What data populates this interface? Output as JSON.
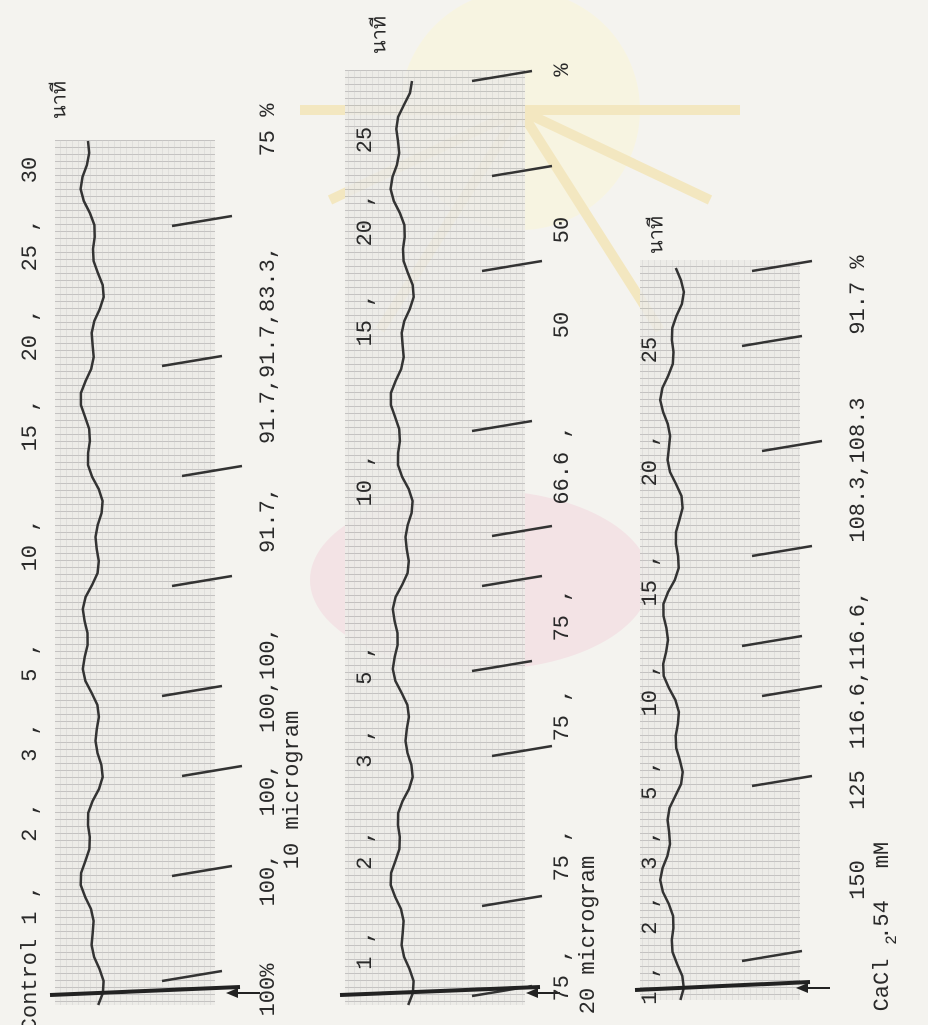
{
  "strips": [
    {
      "times": [
        "Control",
        "1 ,",
        "2 ,",
        "3 ,",
        "5 ,",
        "10 ,",
        "15 ,",
        "20 ,",
        "25 ,",
        "30"
      ],
      "unit": "นาที",
      "responses": [
        "100%",
        "100,",
        "100,",
        "100,100,",
        "91.7,",
        "91.7,91.7,83.3,",
        "75 %"
      ],
      "dose": "10 microgram"
    },
    {
      "times": [
        "1 ,",
        "2 ,",
        "3 ,",
        "5 ,",
        "10 ,",
        "15 ,",
        "20 ,",
        "25"
      ],
      "unit": "นาที",
      "responses": [
        "75 ,",
        "75 ,",
        "75 ,",
        "75 ,",
        "66.6 ,",
        "50",
        "50",
        "%"
      ],
      "dose": "20 microgram"
    },
    {
      "times": [
        "1 ,",
        "2 ,",
        "3 ,",
        "5 ,",
        "10 ,",
        "15 ,",
        "20 ,",
        "25"
      ],
      "unit": "นาที",
      "responses": [
        "150",
        "125",
        "116.6,116.6,",
        "108.3,108.3",
        "91.7 %"
      ],
      "dose": [
        "CaCl",
        "2",
        ".54",
        "mM"
      ]
    }
  ]
}
